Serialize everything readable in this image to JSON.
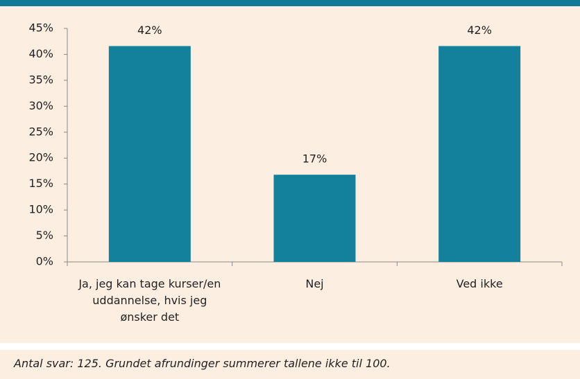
{
  "chart_data": {
    "type": "bar",
    "categories": [
      "Ja, jeg kan tage kurser/en uddannelse, hvis jeg ønsker det",
      "Nej",
      "Ved ikke"
    ],
    "values": [
      41.6,
      16.8,
      41.6
    ],
    "value_labels": [
      "42%",
      "17%",
      "42%"
    ],
    "color": "#13809c",
    "ylim": [
      0,
      45
    ],
    "yticks": [
      {
        "value": 0,
        "label": "0%"
      },
      {
        "value": 5,
        "label": "5%"
      },
      {
        "value": 10,
        "label": "10%"
      },
      {
        "value": 15,
        "label": "15%"
      },
      {
        "value": 20,
        "label": "20%"
      },
      {
        "value": 25,
        "label": "25%"
      },
      {
        "value": 30,
        "label": "30%"
      },
      {
        "value": 35,
        "label": "35%"
      },
      {
        "value": 40,
        "label": "40%"
      },
      {
        "value": 45,
        "label": "45%"
      }
    ],
    "grid": false
  },
  "footnote": "Antal svar: 125. Grundet afrundinger summerer tallene ikke til 100."
}
